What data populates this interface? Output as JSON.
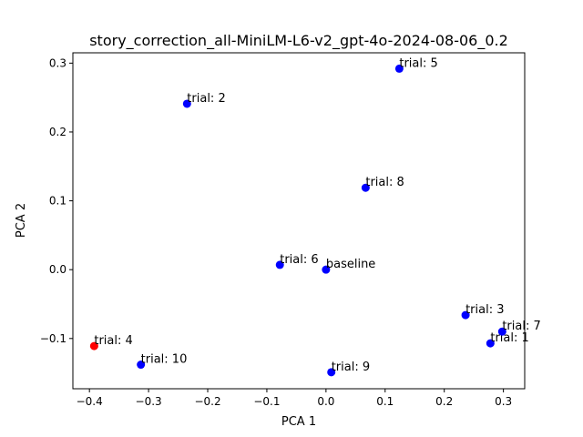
{
  "chart_data": {
    "type": "scatter",
    "title": "story_correction_all-MiniLM-L6-v2_gpt-4o-2024-08-06_0.2",
    "xlabel": "PCA 1",
    "ylabel": "PCA 2",
    "xlim": [
      -0.428,
      0.336
    ],
    "ylim": [
      -0.173,
      0.315
    ],
    "xticks": [
      -0.4,
      -0.3,
      -0.2,
      -0.1,
      0.0,
      0.1,
      0.2,
      0.3
    ],
    "xtick_labels": [
      "−0.4",
      "−0.3",
      "−0.2",
      "−0.1",
      "0.0",
      "0.1",
      "0.2",
      "0.3"
    ],
    "yticks": [
      -0.1,
      0.0,
      0.1,
      0.2,
      0.3
    ],
    "ytick_labels": [
      "−0.1",
      "0.0",
      "0.1",
      "0.2",
      "0.3"
    ],
    "grid": false,
    "points": [
      {
        "label": "baseline",
        "x": 0.0,
        "y": 0.0,
        "color": "#0000ff"
      },
      {
        "label": "trial: 1",
        "x": 0.278,
        "y": -0.107,
        "color": "#0000ff"
      },
      {
        "label": "trial: 2",
        "x": -0.235,
        "y": 0.241,
        "color": "#0000ff"
      },
      {
        "label": "trial: 3",
        "x": 0.236,
        "y": -0.066,
        "color": "#0000ff"
      },
      {
        "label": "trial: 4",
        "x": -0.392,
        "y": -0.111,
        "color": "#ff0000"
      },
      {
        "label": "trial: 5",
        "x": 0.124,
        "y": 0.292,
        "color": "#0000ff"
      },
      {
        "label": "trial: 6",
        "x": -0.078,
        "y": 0.007,
        "color": "#0000ff"
      },
      {
        "label": "trial: 7",
        "x": 0.298,
        "y": -0.09,
        "color": "#0000ff"
      },
      {
        "label": "trial: 8",
        "x": 0.067,
        "y": 0.119,
        "color": "#0000ff"
      },
      {
        "label": "trial: 9",
        "x": 0.009,
        "y": -0.149,
        "color": "#0000ff"
      },
      {
        "label": "trial: 10",
        "x": -0.313,
        "y": -0.138,
        "color": "#0000ff"
      }
    ]
  }
}
